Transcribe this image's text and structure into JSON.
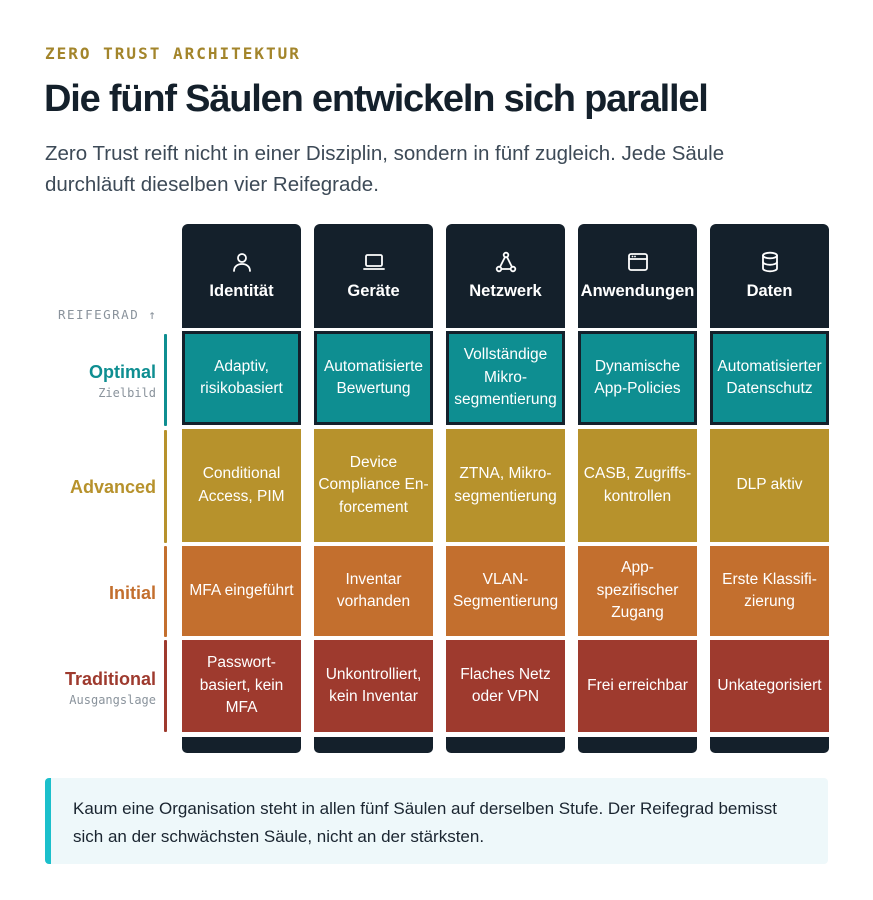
{
  "header": {
    "eyebrow": "ZERO TRUST ARCHITEKTUR",
    "title": "Die fünf Säulen entwickeln sich parallel",
    "subtitle": "Zero Trust reift nicht in einer Disziplin, sondern in fünf zugleich. Jede Säule durchläuft dieselben vier Reifegrade."
  },
  "axis_label": "REIFEGRAD ↑",
  "levels": [
    {
      "name": "Optimal",
      "sub": "Zielbild",
      "color": "#0e8e91"
    },
    {
      "name": "Advanced",
      "sub": "",
      "color": "#b7922c"
    },
    {
      "name": "Initial",
      "sub": "",
      "color": "#c36f2e"
    },
    {
      "name": "Traditional",
      "sub": "Ausgangslage",
      "color": "#9e3a2e"
    }
  ],
  "pillars": [
    {
      "label": "Identität",
      "icon": "user-icon",
      "cells": [
        "Adaptiv, risikobasiert",
        "Conditional Access, PIM",
        "MFA eingeführt",
        "Passwort­basiert, kein MFA"
      ]
    },
    {
      "label": "Geräte",
      "icon": "laptop-icon",
      "cells": [
        "Automati­sierte Bewertung",
        "Device Compliance En­forcement",
        "Inventar vorhanden",
        "Unkon­trolliert, kein Inventar"
      ]
    },
    {
      "label": "Netzwerk",
      "icon": "network-icon",
      "cells": [
        "Vollständige Mikro­segmentierung",
        "ZTNA, Mikro­segmentierung",
        "VLAN-Segmentierung",
        "Flaches Netz oder VPN"
      ]
    },
    {
      "label": "Anwen­dungen",
      "icon": "app-window-icon",
      "cells": [
        "Dynamische App-Policies",
        "CASB, Zugriffs­kontrollen",
        "App-spezifischer Zugang",
        "Frei erreichbar"
      ]
    },
    {
      "label": "Daten",
      "icon": "database-icon",
      "cells": [
        "Automati­sierter Datenschutz",
        "DLP aktiv",
        "Erste Klassifi­zierung",
        "Un­kategorisiert"
      ]
    }
  ],
  "note": "Kaum eine Organisation steht in allen fünf Säulen auf derselben Stufe. Der Reifegrad bemisst sich an der schwächsten Säule, nicht an der stärksten.",
  "colors": {
    "dark": "#14202b",
    "accent": "#a3852b",
    "note_bar": "#1bbfcb"
  }
}
